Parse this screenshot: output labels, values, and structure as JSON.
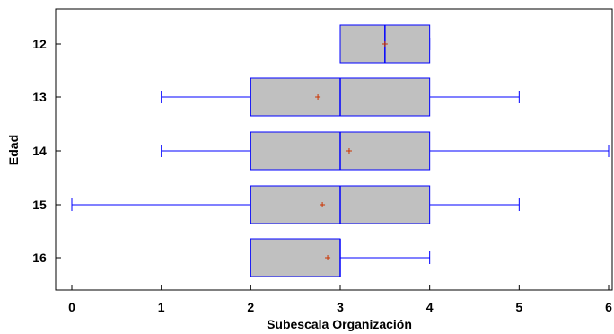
{
  "chart_data": {
    "type": "boxplot",
    "orientation": "horizontal",
    "xlabel": "Subescala Organización",
    "ylabel": "Edad",
    "xlim": [
      0,
      6
    ],
    "x_ticks": [
      "0",
      "1",
      "2",
      "3",
      "4",
      "5",
      "6"
    ],
    "categories": [
      "12",
      "13",
      "14",
      "15",
      "16"
    ],
    "boxes": [
      {
        "label": "12",
        "min": 3,
        "q1": 3,
        "median": 3.5,
        "q3": 4,
        "max": 4,
        "mean": 3.5
      },
      {
        "label": "13",
        "min": 1,
        "q1": 2,
        "median": 3,
        "q3": 4,
        "max": 5,
        "mean": 2.75
      },
      {
        "label": "14",
        "min": 1,
        "q1": 2,
        "median": 3,
        "q3": 4,
        "max": 6,
        "mean": 3.1
      },
      {
        "label": "15",
        "min": 0,
        "q1": 2,
        "median": 3,
        "q3": 4,
        "max": 5,
        "mean": 2.8
      },
      {
        "label": "16",
        "min": 2,
        "q1": 2,
        "median": 3,
        "q3": 3,
        "max": 4,
        "mean": 2.86
      }
    ],
    "colors": {
      "box_fill": "#c0c0c0",
      "box_stroke": "#0000ff",
      "mean_marker": "#cc3300",
      "axis": "#000000"
    },
    "grid": false,
    "legend": "none"
  }
}
